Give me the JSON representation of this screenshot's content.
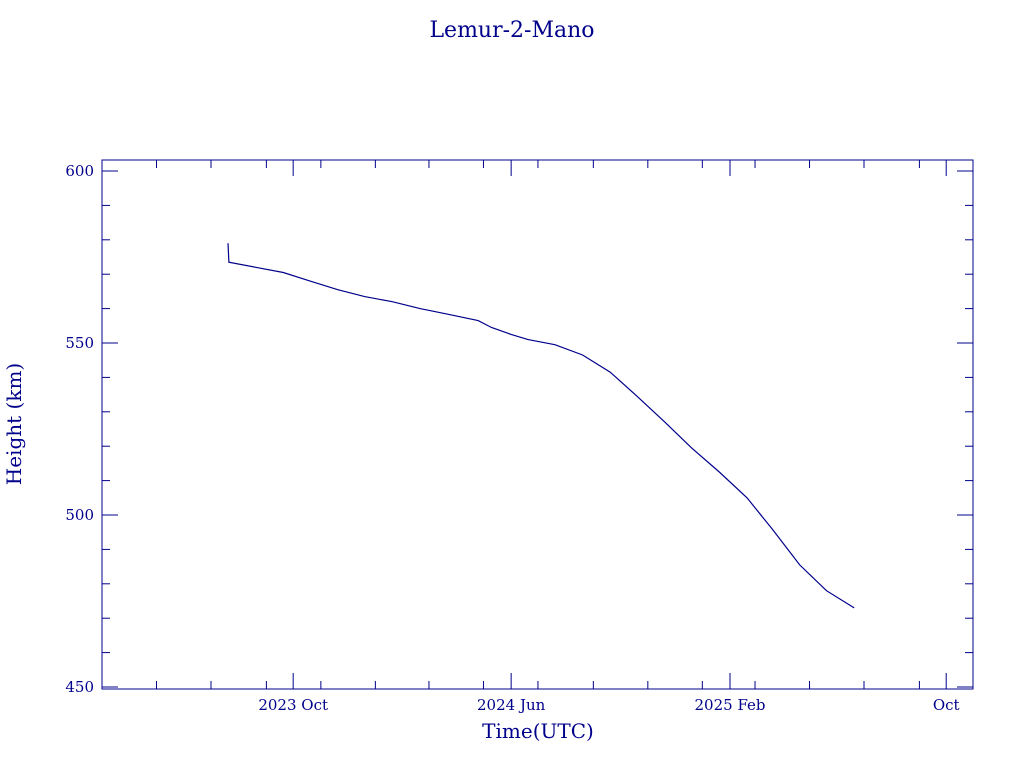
{
  "chart_data": {
    "type": "line",
    "title": "Lemur-2-Mano",
    "xlabel": "Time(UTC)",
    "ylabel": "Height (km)",
    "ylim": [
      450,
      600
    ],
    "xlim": [
      "2023-03-01",
      "2025-10-31"
    ],
    "y_ticks": [
      450,
      500,
      550,
      600
    ],
    "x_ticks": [
      {
        "label": "2023 Oct",
        "date": "2023-10-01"
      },
      {
        "label": "2024 Jun",
        "date": "2024-06-01"
      },
      {
        "label": "2025 Feb",
        "date": "2025-02-01"
      },
      {
        "label": "Oct",
        "date": "2025-10-01"
      }
    ],
    "grid": false,
    "color": "#00008b",
    "series": [
      {
        "points": [
          {
            "x": "2023-07-20",
            "y": 579
          },
          {
            "x": "2023-07-21",
            "y": 573.5
          },
          {
            "x": "2023-08-20",
            "y": 572
          },
          {
            "x": "2023-09-20",
            "y": 570.5
          },
          {
            "x": "2023-10-20",
            "y": 568
          },
          {
            "x": "2023-11-20",
            "y": 565.5
          },
          {
            "x": "2023-12-20",
            "y": 563.5
          },
          {
            "x": "2024-01-20",
            "y": 562
          },
          {
            "x": "2024-02-20",
            "y": 560
          },
          {
            "x": "2024-03-20",
            "y": 558.5
          },
          {
            "x": "2024-04-25",
            "y": 556.5
          },
          {
            "x": "2024-05-10",
            "y": 554.5
          },
          {
            "x": "2024-06-01",
            "y": 552.5
          },
          {
            "x": "2024-06-20",
            "y": 551
          },
          {
            "x": "2024-07-20",
            "y": 549.5
          },
          {
            "x": "2024-08-20",
            "y": 546.5
          },
          {
            "x": "2024-09-20",
            "y": 541.5
          },
          {
            "x": "2024-10-20",
            "y": 534.5
          },
          {
            "x": "2024-11-20",
            "y": 527
          },
          {
            "x": "2024-12-20",
            "y": 519.5
          },
          {
            "x": "2025-01-20",
            "y": 512.5
          },
          {
            "x": "2025-02-20",
            "y": 505
          },
          {
            "x": "2025-03-20",
            "y": 496
          },
          {
            "x": "2025-04-20",
            "y": 485.5
          },
          {
            "x": "2025-05-20",
            "y": 478
          },
          {
            "x": "2025-06-20",
            "y": 473
          }
        ]
      }
    ]
  }
}
